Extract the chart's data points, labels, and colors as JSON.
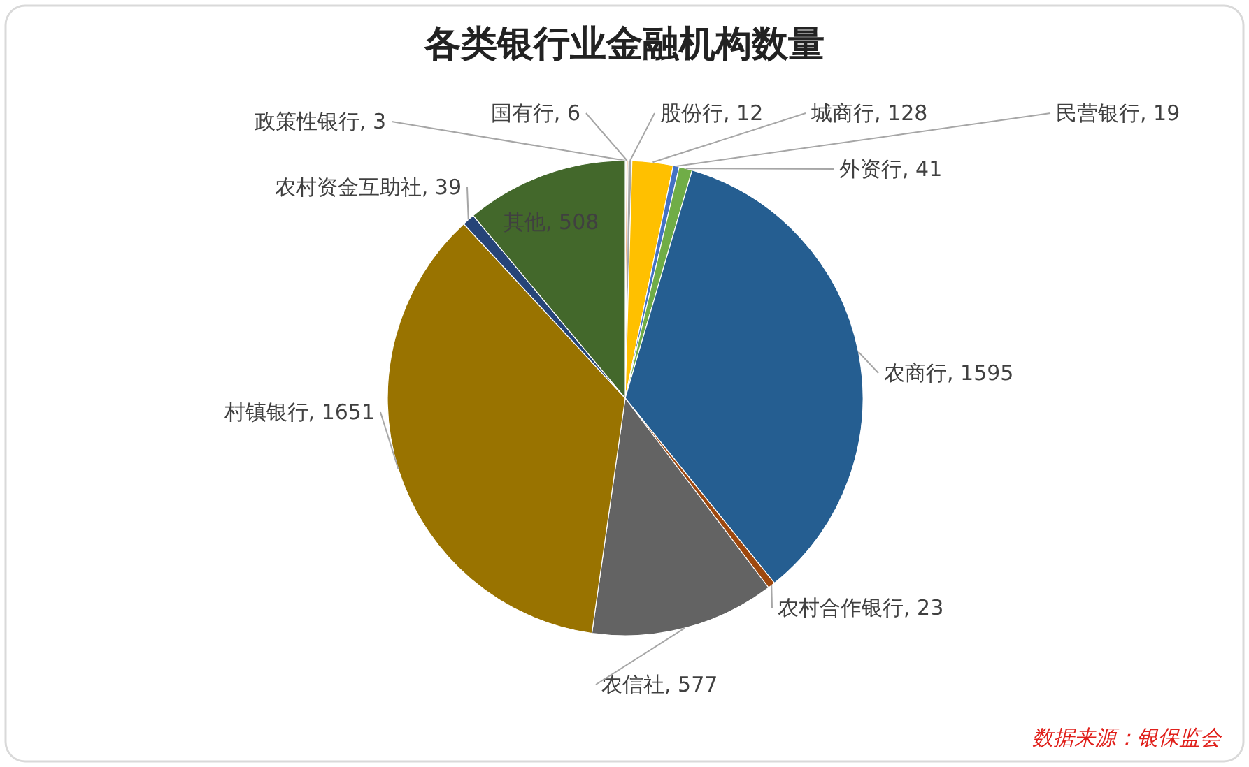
{
  "chart_data": {
    "type": "pie",
    "title": "各类银行业金融机构数量",
    "categories": [
      "政策性银行",
      "国有行",
      "股份行",
      "城商行",
      "民营银行",
      "外资行",
      "农商行",
      "农村合作银行",
      "农信社",
      "村镇银行",
      "农村资金互助社",
      "其他"
    ],
    "values": [
      3,
      6,
      12,
      128,
      19,
      41,
      1595,
      23,
      577,
      1651,
      39,
      508
    ],
    "colors": [
      "#5b9bd5",
      "#ed7d31",
      "#a5a5a5",
      "#ffc000",
      "#4472c4",
      "#70ad47",
      "#255e91",
      "#9e480e",
      "#636363",
      "#997300",
      "#264478",
      "#43682b"
    ],
    "value_labels": [
      ", 3",
      ", 6",
      ", 12",
      ", 128",
      ", 19",
      ", 41",
      ", 1595",
      ", 23",
      ", 577",
      ", 1651",
      ", 39",
      ", 508"
    ],
    "annotations": [
      "数据来源：银保监会"
    ]
  }
}
